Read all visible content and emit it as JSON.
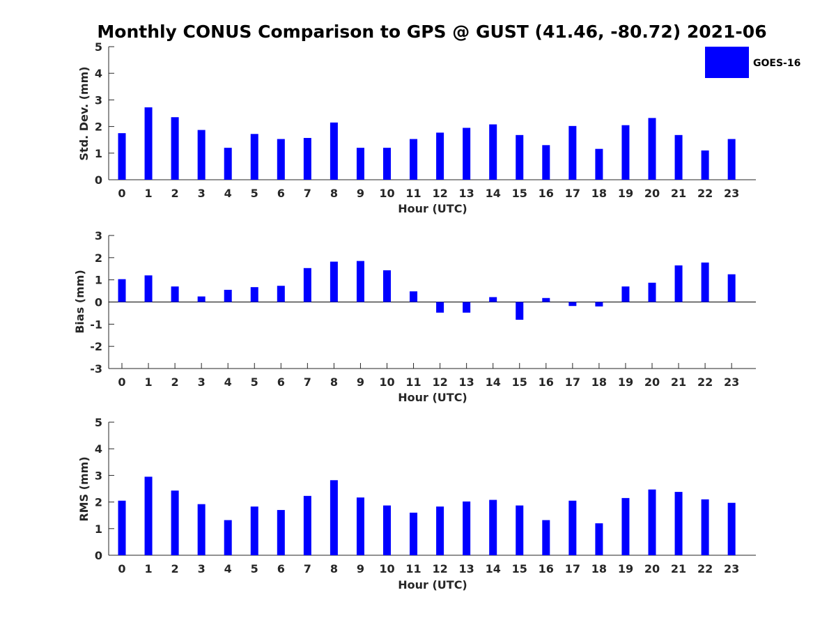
{
  "chart_data": {
    "type": "bar",
    "title": "Monthly CONUS Comparison to GPS @ GUST (41.46, -80.72) 2021-06",
    "legend": {
      "label": "GOES-16",
      "color": "#0000ff",
      "placement": "top-right"
    },
    "categories": [
      "0",
      "1",
      "2",
      "3",
      "4",
      "5",
      "6",
      "7",
      "8",
      "9",
      "10",
      "11",
      "12",
      "13",
      "14",
      "15",
      "16",
      "17",
      "18",
      "19",
      "20",
      "21",
      "22",
      "23"
    ],
    "panels": [
      {
        "id": "stddev",
        "xlabel": "Hour (UTC)",
        "ylabel": "Std. Dev. (mm)",
        "ylim": [
          0,
          5
        ],
        "yticks": [
          "0",
          "1",
          "2",
          "3",
          "4",
          "5"
        ],
        "series": [
          {
            "name": "GOES-16",
            "color": "#0000ff",
            "values": [
              1.75,
              2.72,
              2.35,
              1.87,
              1.2,
              1.72,
              1.53,
              1.57,
              2.15,
              1.2,
              1.2,
              1.53,
              1.77,
              1.95,
              2.08,
              1.68,
              1.3,
              2.02,
              1.16,
              2.05,
              2.32,
              1.68,
              1.1,
              1.53
            ]
          }
        ]
      },
      {
        "id": "bias",
        "xlabel": "Hour (UTC)",
        "ylabel": "Bias (mm)",
        "ylim": [
          -3,
          3
        ],
        "yticks": [
          "-3",
          "-2",
          "-1",
          "0",
          "1",
          "2",
          "3"
        ],
        "zero_line": true,
        "series": [
          {
            "name": "GOES-16",
            "color": "#0000ff",
            "values": [
              1.03,
              1.2,
              0.7,
              0.25,
              0.55,
              0.67,
              0.73,
              1.53,
              1.82,
              1.85,
              1.43,
              0.48,
              -0.48,
              -0.48,
              0.22,
              -0.8,
              0.18,
              -0.18,
              -0.2,
              0.7,
              0.87,
              1.65,
              1.78,
              1.25
            ]
          }
        ]
      },
      {
        "id": "rms",
        "xlabel": "Hour (UTC)",
        "ylabel": "RMS (mm)",
        "ylim": [
          0,
          5
        ],
        "yticks": [
          "0",
          "1",
          "2",
          "3",
          "4",
          "5"
        ],
        "series": [
          {
            "name": "GOES-16",
            "color": "#0000ff",
            "values": [
              2.05,
              2.95,
              2.43,
              1.92,
              1.32,
              1.83,
              1.7,
              2.23,
              2.82,
              2.17,
              1.87,
              1.6,
              1.83,
              2.02,
              2.08,
              1.87,
              1.32,
              2.05,
              1.2,
              2.15,
              2.47,
              2.38,
              2.1,
              1.97
            ]
          }
        ]
      }
    ]
  }
}
